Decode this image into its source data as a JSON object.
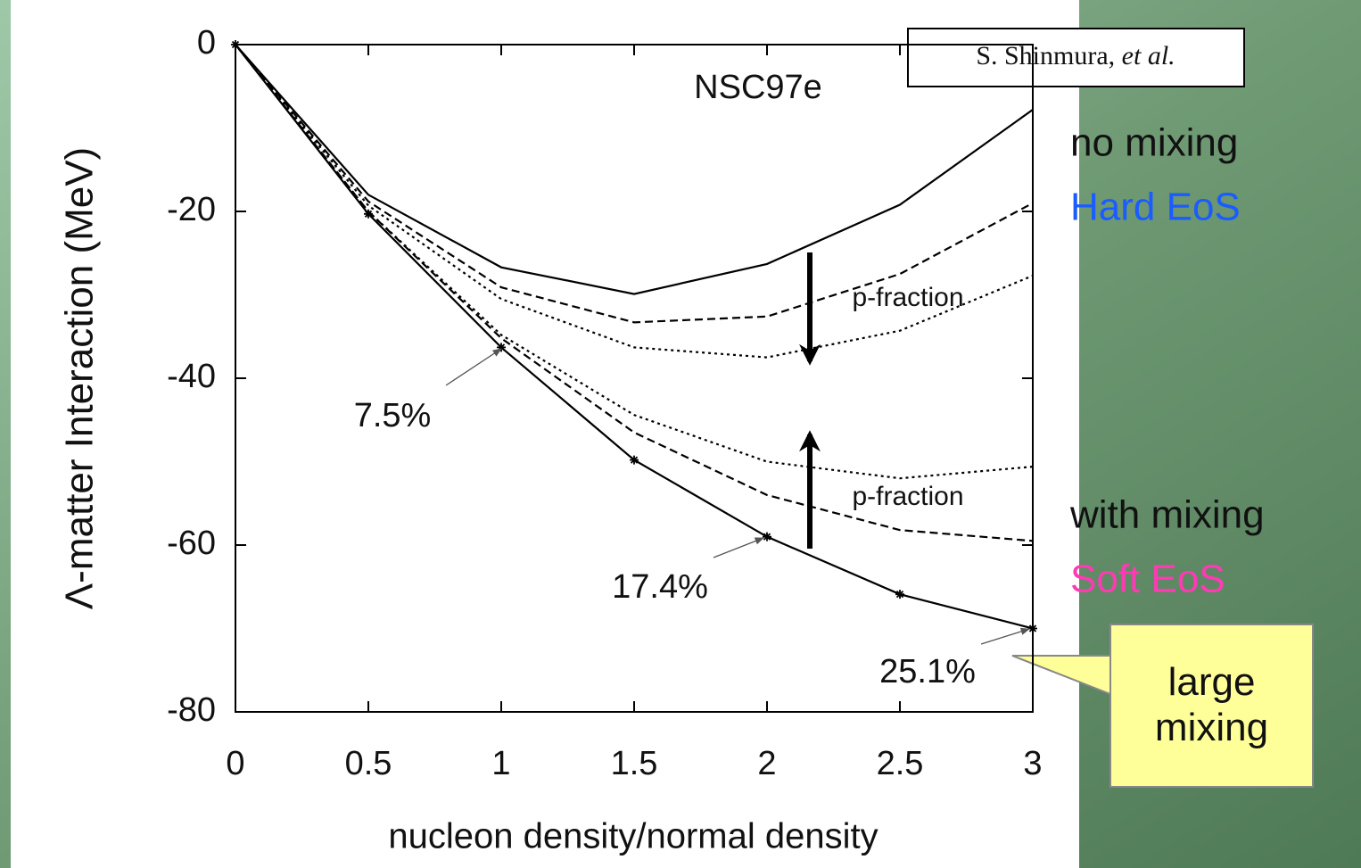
{
  "chart_data": {
    "type": "line",
    "title": "NSC97e",
    "credit": {
      "author": "S. Shinmura,",
      "etal": "et al."
    },
    "xlabel": "nucleon density/normal density",
    "ylabel": "Λ-matter Interaction (MeV)",
    "x": [
      0,
      0.5,
      1,
      1.5,
      2,
      2.5,
      3
    ],
    "xlim": [
      0,
      3
    ],
    "xticks": [
      0,
      0.5,
      1,
      1.5,
      2,
      2.5,
      3
    ],
    "ylim": [
      -80,
      0
    ],
    "yticks": [
      -80,
      -60,
      -40,
      -20,
      0
    ],
    "series": [
      {
        "color": "#000000",
        "style": "solid",
        "values": [
          0,
          -18,
          -26.7,
          -29.9,
          -26.3,
          -19.2,
          -7.8
        ]
      },
      {
        "color": "#000000",
        "style": "dashed",
        "values": [
          0,
          -18.8,
          -29.1,
          -33.3,
          -32.6,
          -27.5,
          -19
        ]
      },
      {
        "color": "#000000",
        "style": "dotted",
        "values": [
          0,
          -19.3,
          -30.5,
          -36.3,
          -37.5,
          -34.3,
          -27.7
        ]
      },
      {
        "color": "#000000",
        "style": "dotted",
        "values": [
          0,
          -20,
          -34.8,
          -44.4,
          -50,
          -52,
          -50.6
        ]
      },
      {
        "color": "#000000",
        "style": "dashed",
        "values": [
          0,
          -20,
          -35.2,
          -46.5,
          -54,
          -58.2,
          -59.5
        ]
      },
      {
        "color": "#000000",
        "style": "solid",
        "markers": true,
        "values": [
          0,
          -20.3,
          -36.3,
          -49.8,
          -59,
          -65.9,
          -70
        ]
      }
    ],
    "annotations": [
      "7.5%",
      "17.4%",
      "25.1%",
      "p-fraction",
      "p-fraction"
    ],
    "side_labels": [
      {
        "text": "no mixing",
        "color": "#111111"
      },
      {
        "text": "Hard EoS",
        "color": "#1a5cff"
      },
      {
        "text": "with mixing",
        "color": "#111111"
      },
      {
        "text": "Soft EoS",
        "color": "#ff3ab4"
      }
    ],
    "callout": "large mixing"
  }
}
